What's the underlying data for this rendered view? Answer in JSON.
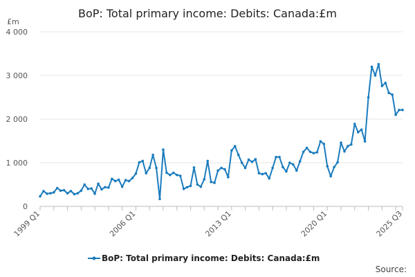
{
  "chart_data": {
    "type": "line",
    "title": "BoP: Total primary income: Debits: Canada:£m",
    "unit_label": "£m",
    "ylim": [
      0,
      4000
    ],
    "y_ticks": [
      0,
      1000,
      2000,
      3000,
      4000
    ],
    "y_tick_labels": [
      "0",
      "1 000",
      "2 000",
      "3 000",
      "4 000"
    ],
    "x_tick_labels": [
      "1999 Q1",
      "2006 Q1",
      "2013 Q1",
      "2020 Q1",
      "2025 Q3"
    ],
    "x_tick_label_indices": [
      0,
      28,
      56,
      84,
      106
    ],
    "grid": "horizontal",
    "legend_position": "bottom",
    "source_label": "Source:",
    "color": "#1a7bbd",
    "series": [
      {
        "name": "BoP: Total primary income: Debits: Canada:£m",
        "x": [
          "1999 Q1",
          "1999 Q2",
          "1999 Q3",
          "1999 Q4",
          "2000 Q1",
          "2000 Q2",
          "2000 Q3",
          "2000 Q4",
          "2001 Q1",
          "2001 Q2",
          "2001 Q3",
          "2001 Q4",
          "2002 Q1",
          "2002 Q2",
          "2002 Q3",
          "2002 Q4",
          "2003 Q1",
          "2003 Q2",
          "2003 Q3",
          "2003 Q4",
          "2004 Q1",
          "2004 Q2",
          "2004 Q3",
          "2004 Q4",
          "2005 Q1",
          "2005 Q2",
          "2005 Q3",
          "2005 Q4",
          "2006 Q1",
          "2006 Q2",
          "2006 Q3",
          "2006 Q4",
          "2007 Q1",
          "2007 Q2",
          "2007 Q3",
          "2007 Q4",
          "2008 Q1",
          "2008 Q2",
          "2008 Q3",
          "2008 Q4",
          "2009 Q1",
          "2009 Q2",
          "2009 Q3",
          "2009 Q4",
          "2010 Q1",
          "2010 Q2",
          "2010 Q3",
          "2010 Q4",
          "2011 Q1",
          "2011 Q2",
          "2011 Q3",
          "2011 Q4",
          "2012 Q1",
          "2012 Q2",
          "2012 Q3",
          "2012 Q4",
          "2013 Q1",
          "2013 Q2",
          "2013 Q3",
          "2013 Q4",
          "2014 Q1",
          "2014 Q2",
          "2014 Q3",
          "2014 Q4",
          "2015 Q1",
          "2015 Q2",
          "2015 Q3",
          "2015 Q4",
          "2016 Q1",
          "2016 Q2",
          "2016 Q3",
          "2016 Q4",
          "2017 Q1",
          "2017 Q2",
          "2017 Q3",
          "2017 Q4",
          "2018 Q1",
          "2018 Q2",
          "2018 Q3",
          "2018 Q4",
          "2019 Q1",
          "2019 Q2",
          "2019 Q3",
          "2019 Q4",
          "2020 Q1",
          "2020 Q2",
          "2020 Q3",
          "2020 Q4",
          "2021 Q1",
          "2021 Q2",
          "2021 Q3",
          "2021 Q4",
          "2022 Q1",
          "2022 Q2",
          "2022 Q3",
          "2022 Q4",
          "2023 Q1",
          "2023 Q2",
          "2023 Q3",
          "2023 Q4",
          "2024 Q1",
          "2024 Q2",
          "2024 Q3",
          "2024 Q4",
          "2025 Q1",
          "2025 Q2",
          "2025 Q3"
        ],
        "values": [
          230,
          350,
          290,
          300,
          320,
          420,
          360,
          370,
          300,
          350,
          280,
          300,
          360,
          500,
          400,
          410,
          290,
          520,
          390,
          440,
          430,
          630,
          580,
          610,
          450,
          600,
          580,
          650,
          750,
          1010,
          1040,
          760,
          880,
          1180,
          880,
          170,
          1300,
          770,
          720,
          770,
          720,
          700,
          400,
          440,
          470,
          890,
          500,
          450,
          620,
          1040,
          560,
          540,
          820,
          880,
          850,
          670,
          1280,
          1380,
          1180,
          1000,
          880,
          1070,
          1020,
          1080,
          760,
          740,
          760,
          640,
          880,
          1130,
          1130,
          900,
          800,
          1000,
          960,
          820,
          1030,
          1250,
          1340,
          1250,
          1220,
          1240,
          1490,
          1430,
          920,
          690,
          900,
          1010,
          1460,
          1260,
          1380,
          1420,
          1890,
          1700,
          1760,
          1490,
          2500,
          3200,
          3000,
          3260,
          2760,
          2830,
          2600,
          2560,
          2100,
          2210,
          2210
        ]
      }
    ]
  }
}
